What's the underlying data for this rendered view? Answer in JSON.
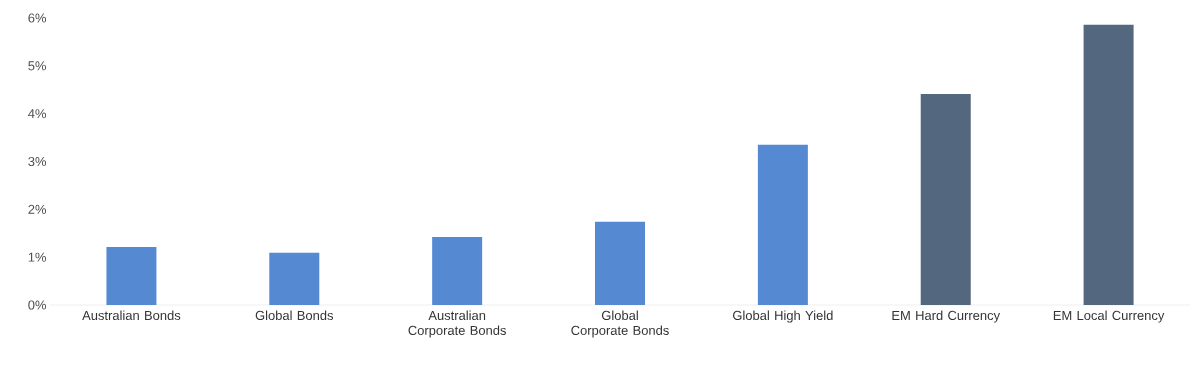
{
  "chart_data": {
    "type": "bar",
    "categories": [
      "Australian Bonds",
      "Global Bonds",
      "Australian Corporate Bonds",
      "Global Corporate Bonds",
      "Global High Yield",
      "EM Hard Currency",
      "EM Local Currency"
    ],
    "values": [
      1.21,
      1.09,
      1.42,
      1.74,
      3.35,
      4.41,
      5.86
    ],
    "colors": [
      "#5589d2",
      "#5589d2",
      "#5589d2",
      "#5589d2",
      "#5589d2",
      "#53677f",
      "#53677f"
    ],
    "ylim": [
      0,
      6
    ],
    "yticks": [
      {
        "value": 0,
        "label": "0%"
      },
      {
        "value": 1,
        "label": "1%"
      },
      {
        "value": 2,
        "label": "2%"
      },
      {
        "value": 3,
        "label": "3%"
      },
      {
        "value": 4,
        "label": "4%"
      },
      {
        "value": 5,
        "label": "5%"
      },
      {
        "value": 6,
        "label": "6%"
      }
    ]
  }
}
